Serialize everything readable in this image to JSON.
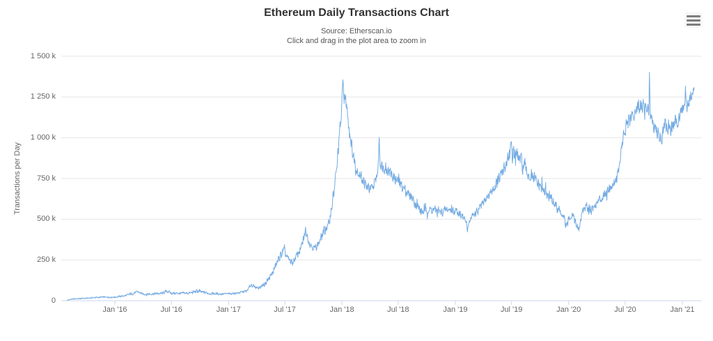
{
  "header": {
    "title": "Ethereum Daily Transactions Chart",
    "subtitle_source": "Source: Etherscan.io",
    "subtitle_hint": "Click and drag in the plot area to zoom in"
  },
  "menu": {
    "icon": "hamburger-icon"
  },
  "colors": {
    "line": "#74abe2",
    "grid": "#e6e6e6",
    "axis_line": "#ccd6eb",
    "title_text": "#333333",
    "subtitle_text": "#555555",
    "tick_text": "#666666"
  },
  "chart_data": {
    "type": "line",
    "title": "Ethereum Daily Transactions Chart",
    "subtitle": [
      "Source: Etherscan.io",
      "Click and drag in the plot area to zoom in"
    ],
    "xlabel": "",
    "ylabel": "Transactions per Day",
    "unit": "thousand transactions per day",
    "ylim": [
      0,
      1500
    ],
    "grid": true,
    "legend": false,
    "yticks": [
      {
        "value": 0,
        "label": "0"
      },
      {
        "value": 250,
        "label": "250 k"
      },
      {
        "value": 500,
        "label": "500 k"
      },
      {
        "value": 750,
        "label": "750 k"
      },
      {
        "value": 1000,
        "label": "1 000 k"
      },
      {
        "value": 1250,
        "label": "1 250 k"
      },
      {
        "value": 1500,
        "label": "1 500 k"
      }
    ],
    "xticks": [
      {
        "date": "2016-01-01",
        "label": "Jan '16"
      },
      {
        "date": "2016-07-01",
        "label": "Jul '16"
      },
      {
        "date": "2017-01-01",
        "label": "Jan '17"
      },
      {
        "date": "2017-07-01",
        "label": "Jul '17"
      },
      {
        "date": "2018-01-01",
        "label": "Jan '18"
      },
      {
        "date": "2018-07-01",
        "label": "Jul '18"
      },
      {
        "date": "2019-01-01",
        "label": "Jan '19"
      },
      {
        "date": "2019-07-01",
        "label": "Jul '19"
      },
      {
        "date": "2020-01-01",
        "label": "Jan '20"
      },
      {
        "date": "2020-07-01",
        "label": "Jul '20"
      },
      {
        "date": "2021-01-01",
        "label": "Jan '21"
      }
    ],
    "series": [
      {
        "name": "Ethereum Daily Transactions",
        "anchors_format": [
          "date",
          "value_k",
          "daily_volatility_k"
        ],
        "anchors": [
          [
            "2015-07-31",
            2,
            2
          ],
          [
            "2015-08-10",
            8,
            4
          ],
          [
            "2015-09-01",
            12,
            4
          ],
          [
            "2015-10-01",
            15,
            5
          ],
          [
            "2015-11-01",
            20,
            6
          ],
          [
            "2015-12-01",
            22,
            6
          ],
          [
            "2016-01-01",
            22,
            6
          ],
          [
            "2016-02-01",
            30,
            8
          ],
          [
            "2016-03-01",
            45,
            10
          ],
          [
            "2016-03-15",
            55,
            12
          ],
          [
            "2016-04-01",
            40,
            8
          ],
          [
            "2016-05-01",
            42,
            9
          ],
          [
            "2016-06-01",
            45,
            10
          ],
          [
            "2016-06-17",
            58,
            13
          ],
          [
            "2016-07-01",
            46,
            10
          ],
          [
            "2016-08-01",
            45,
            10
          ],
          [
            "2016-09-01",
            48,
            12
          ],
          [
            "2016-09-20",
            58,
            14
          ],
          [
            "2016-10-10",
            52,
            12
          ],
          [
            "2016-11-01",
            45,
            9
          ],
          [
            "2016-12-01",
            42,
            9
          ],
          [
            "2017-01-01",
            42,
            8
          ],
          [
            "2017-02-01",
            48,
            9
          ],
          [
            "2017-03-01",
            60,
            10
          ],
          [
            "2017-03-15",
            100,
            15
          ],
          [
            "2017-03-25",
            85,
            12
          ],
          [
            "2017-04-10",
            80,
            12
          ],
          [
            "2017-05-01",
            110,
            18
          ],
          [
            "2017-05-20",
            160,
            25
          ],
          [
            "2017-06-10",
            250,
            30
          ],
          [
            "2017-06-27",
            310,
            30
          ],
          [
            "2017-07-10",
            260,
            28
          ],
          [
            "2017-07-25",
            230,
            25
          ],
          [
            "2017-08-10",
            280,
            30
          ],
          [
            "2017-08-25",
            335,
            35
          ],
          [
            "2017-09-06",
            430,
            35
          ],
          [
            "2017-09-20",
            350,
            30
          ],
          [
            "2017-10-05",
            320,
            28
          ],
          [
            "2017-10-20",
            360,
            30
          ],
          [
            "2017-11-05",
            430,
            35
          ],
          [
            "2017-11-20",
            470,
            35
          ],
          [
            "2017-12-05",
            650,
            55
          ],
          [
            "2017-12-15",
            800,
            60
          ],
          [
            "2017-12-23",
            1000,
            60
          ],
          [
            "2017-12-29",
            1100,
            55
          ],
          [
            "2018-01-04",
            1350,
            25
          ],
          [
            "2018-01-09",
            1250,
            50
          ],
          [
            "2018-01-16",
            1200,
            60
          ],
          [
            "2018-01-25",
            1050,
            55
          ],
          [
            "2018-02-05",
            900,
            50
          ],
          [
            "2018-02-18",
            800,
            45
          ],
          [
            "2018-03-05",
            760,
            45
          ],
          [
            "2018-03-20",
            700,
            40
          ],
          [
            "2018-04-05",
            680,
            40
          ],
          [
            "2018-04-17",
            720,
            40
          ],
          [
            "2018-04-27",
            800,
            40
          ],
          [
            "2018-05-01",
            1000,
            25
          ],
          [
            "2018-05-04",
            840,
            40
          ],
          [
            "2018-05-15",
            820,
            40
          ],
          [
            "2018-06-01",
            800,
            45
          ],
          [
            "2018-06-15",
            760,
            40
          ],
          [
            "2018-07-01",
            730,
            40
          ],
          [
            "2018-07-15",
            700,
            40
          ],
          [
            "2018-08-01",
            660,
            40
          ],
          [
            "2018-08-15",
            630,
            35
          ],
          [
            "2018-09-01",
            580,
            35
          ],
          [
            "2018-09-15",
            545,
            30
          ],
          [
            "2018-10-01",
            555,
            30
          ],
          [
            "2018-10-15",
            560,
            32
          ],
          [
            "2018-11-01",
            555,
            30
          ],
          [
            "2018-11-15",
            540,
            30
          ],
          [
            "2018-12-01",
            555,
            35
          ],
          [
            "2018-12-15",
            560,
            35
          ],
          [
            "2019-01-01",
            550,
            32
          ],
          [
            "2019-01-15",
            540,
            30
          ],
          [
            "2019-02-01",
            500,
            28
          ],
          [
            "2019-02-06",
            470,
            20
          ],
          [
            "2019-02-09",
            425,
            12
          ],
          [
            "2019-02-13",
            480,
            20
          ],
          [
            "2019-03-01",
            530,
            30
          ],
          [
            "2019-03-15",
            550,
            30
          ],
          [
            "2019-04-01",
            600,
            35
          ],
          [
            "2019-04-15",
            640,
            38
          ],
          [
            "2019-05-01",
            680,
            45
          ],
          [
            "2019-05-15",
            720,
            50
          ],
          [
            "2019-06-01",
            780,
            55
          ],
          [
            "2019-06-15",
            850,
            65
          ],
          [
            "2019-06-28",
            920,
            70
          ],
          [
            "2019-07-10",
            900,
            75
          ],
          [
            "2019-07-20",
            880,
            75
          ],
          [
            "2019-08-01",
            850,
            70
          ],
          [
            "2019-08-15",
            800,
            60
          ],
          [
            "2019-09-01",
            760,
            55
          ],
          [
            "2019-09-15",
            740,
            55
          ],
          [
            "2019-10-01",
            700,
            48
          ],
          [
            "2019-10-15",
            670,
            45
          ],
          [
            "2019-11-01",
            640,
            42
          ],
          [
            "2019-11-15",
            600,
            40
          ],
          [
            "2019-12-01",
            560,
            40
          ],
          [
            "2019-12-20",
            480,
            35
          ],
          [
            "2019-12-25",
            450,
            25
          ],
          [
            "2020-01-05",
            520,
            35
          ],
          [
            "2020-01-15",
            540,
            35
          ],
          [
            "2020-01-25",
            460,
            30
          ],
          [
            "2020-02-03",
            435,
            20
          ],
          [
            "2020-02-15",
            560,
            35
          ],
          [
            "2020-03-01",
            580,
            35
          ],
          [
            "2020-03-15",
            560,
            35
          ],
          [
            "2020-04-01",
            600,
            35
          ],
          [
            "2020-04-15",
            630,
            35
          ],
          [
            "2020-05-01",
            670,
            38
          ],
          [
            "2020-05-15",
            700,
            38
          ],
          [
            "2020-06-01",
            740,
            40
          ],
          [
            "2020-06-10",
            800,
            45
          ],
          [
            "2020-06-20",
            950,
            55
          ],
          [
            "2020-07-01",
            1050,
            55
          ],
          [
            "2020-07-15",
            1100,
            55
          ],
          [
            "2020-08-01",
            1150,
            55
          ],
          [
            "2020-08-15",
            1200,
            60
          ],
          [
            "2020-09-01",
            1180,
            60
          ],
          [
            "2020-09-15",
            1160,
            45
          ],
          [
            "2020-09-17",
            1400,
            12
          ],
          [
            "2020-09-20",
            1150,
            45
          ],
          [
            "2020-10-01",
            1080,
            50
          ],
          [
            "2020-10-15",
            1020,
            48
          ],
          [
            "2020-10-25",
            980,
            45
          ],
          [
            "2020-11-05",
            1080,
            55
          ],
          [
            "2020-11-20",
            1050,
            55
          ],
          [
            "2020-12-05",
            1080,
            55
          ],
          [
            "2020-12-20",
            1120,
            55
          ],
          [
            "2021-01-01",
            1180,
            55
          ],
          [
            "2021-01-09",
            1200,
            45
          ],
          [
            "2021-01-11",
            1330,
            20
          ],
          [
            "2021-01-14",
            1190,
            50
          ],
          [
            "2021-01-25",
            1230,
            50
          ],
          [
            "2021-02-04",
            1280,
            40
          ],
          [
            "2021-02-08",
            1310,
            15
          ]
        ]
      }
    ]
  }
}
